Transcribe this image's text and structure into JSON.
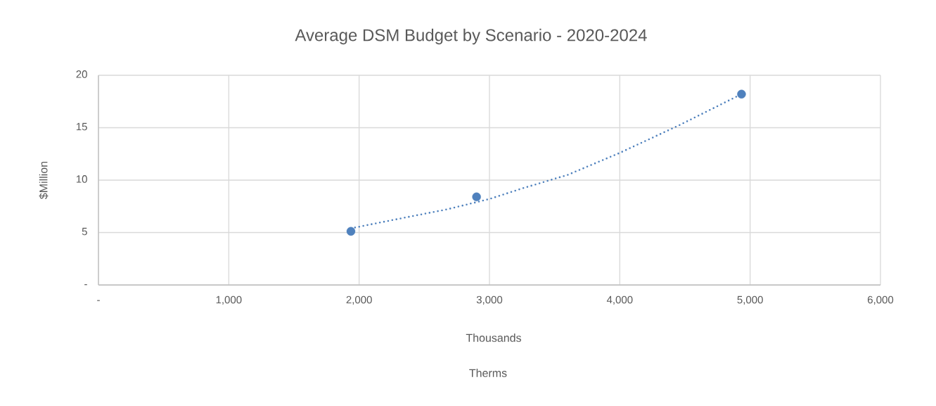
{
  "chart_data": {
    "type": "scatter",
    "title": "Average DSM Budget by Scenario - 2020-2024",
    "xlabel": "Thousands",
    "ylabel": "$Million",
    "annotations": [
      "Therms"
    ],
    "series": [
      {
        "color": "#4f81bd",
        "marker": "circle",
        "x": [
          1937,
          2901,
          4934
        ],
        "values": [
          5.11,
          8.4,
          18.2
        ]
      },
      {
        "type": "line",
        "color": "#4f81bd",
        "marker": "none",
        "line_style": "dotted",
        "x": [
          1937,
          2300,
          2670,
          3000,
          3249,
          3600,
          4000,
          4450,
          4934
        ],
        "values": [
          5.4,
          6.3,
          7.2,
          8.2,
          9.2,
          10.5,
          12.6,
          15.2,
          18.2
        ]
      }
    ],
    "xlim": [
      0,
      6000
    ],
    "xticks": [
      {
        "value": 0,
        "label": "-"
      },
      {
        "value": 1000,
        "label": "1,000"
      },
      {
        "value": 2000,
        "label": "2,000"
      },
      {
        "value": 3000,
        "label": "3,000"
      },
      {
        "value": 4000,
        "label": "4,000"
      },
      {
        "value": 5000,
        "label": "5,000"
      },
      {
        "value": 6000,
        "label": "6,000"
      }
    ],
    "ylim": [
      0,
      20
    ],
    "yticks": [
      {
        "value": 0,
        "label": "-"
      },
      5,
      10,
      15,
      20
    ],
    "grid": true
  }
}
